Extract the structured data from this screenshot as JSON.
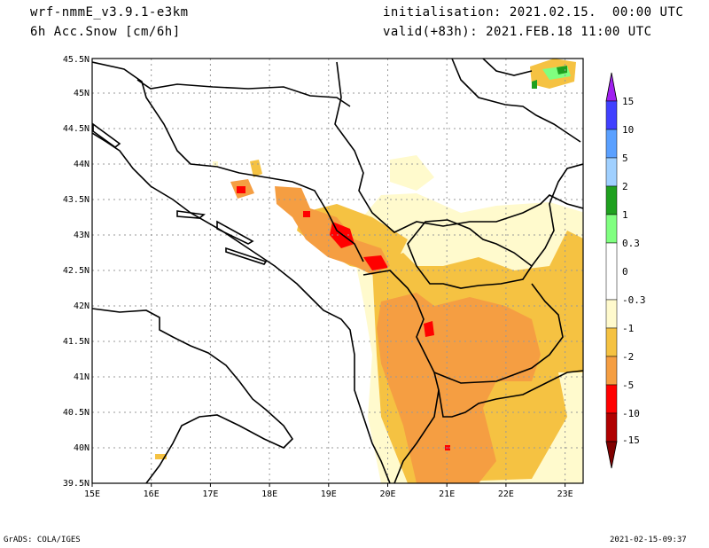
{
  "header": {
    "model": "wrf-nmmE_v3.9.1-e3km",
    "field": "6h Acc.Snow [cm/6h]",
    "init": "initialisation: 2021.02.15.  00:00 UTC",
    "valid": "valid(+83h): 2021.FEB.18 11:00 UTC"
  },
  "map": {
    "lon_labels": [
      "15E",
      "16E",
      "17E",
      "18E",
      "19E",
      "20E",
      "21E",
      "22E",
      "23E"
    ],
    "lat_labels": [
      "39.5N",
      "40N",
      "40.5N",
      "41N",
      "41.5N",
      "42N",
      "42.5N",
      "43N",
      "43.5N",
      "44N",
      "44.5N",
      "45N",
      "45.5N"
    ],
    "lon_range": [
      15,
      23.3
    ],
    "lat_range": [
      39.5,
      45.5
    ]
  },
  "legend": {
    "labels": [
      "15",
      "10",
      "5",
      "2",
      "1",
      "0.3",
      "0",
      "-0.3",
      "-1",
      "-2",
      "-5",
      "-10",
      "-15"
    ],
    "colors": [
      "#a020f0",
      "#4040ff",
      "#5aa0ff",
      "#a0d0ff",
      "#1fa01f",
      "#80ff80",
      "#ffffff",
      "#fffacd",
      "#f5c242",
      "#f59e42",
      "#ff0000",
      "#b00000",
      "#800000"
    ]
  },
  "footer": {
    "left": "GrADS: COLA/IGES",
    "right": "2021-02-15-09:37"
  }
}
